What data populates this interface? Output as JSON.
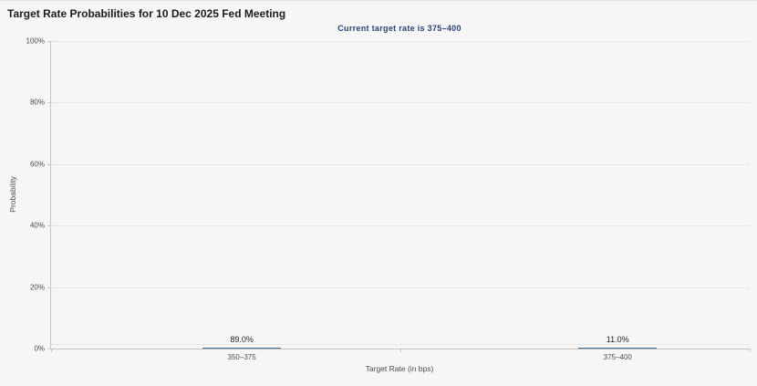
{
  "chart_data": {
    "type": "bar",
    "title": "Target Rate Probabilities for 10 Dec 2025 Fed Meeting",
    "subtitle": "Current target rate is 375–400",
    "categories": [
      "350–375",
      "375–400"
    ],
    "values": [
      89.0,
      11.0
    ],
    "value_labels": [
      "89.0%",
      "11.0%"
    ],
    "xlabel": "Target Rate (in bps)",
    "ylabel": "Probability",
    "ylim": [
      0,
      100
    ],
    "ytick_values": [
      0,
      20,
      40,
      60,
      80,
      100
    ],
    "ytick_labels": [
      "0%",
      "20%",
      "40%",
      "60%",
      "80%",
      "100%"
    ],
    "grid": "horizontal-dotted",
    "legend": "none",
    "colors": {
      "bar_fill": "#5580b3",
      "bar_border": "#44709f",
      "subtitle_text": "#2c4170",
      "background": "#f6f6f7",
      "axis_line": "#c6c6c6",
      "gridline": "#d7d7d7"
    }
  }
}
